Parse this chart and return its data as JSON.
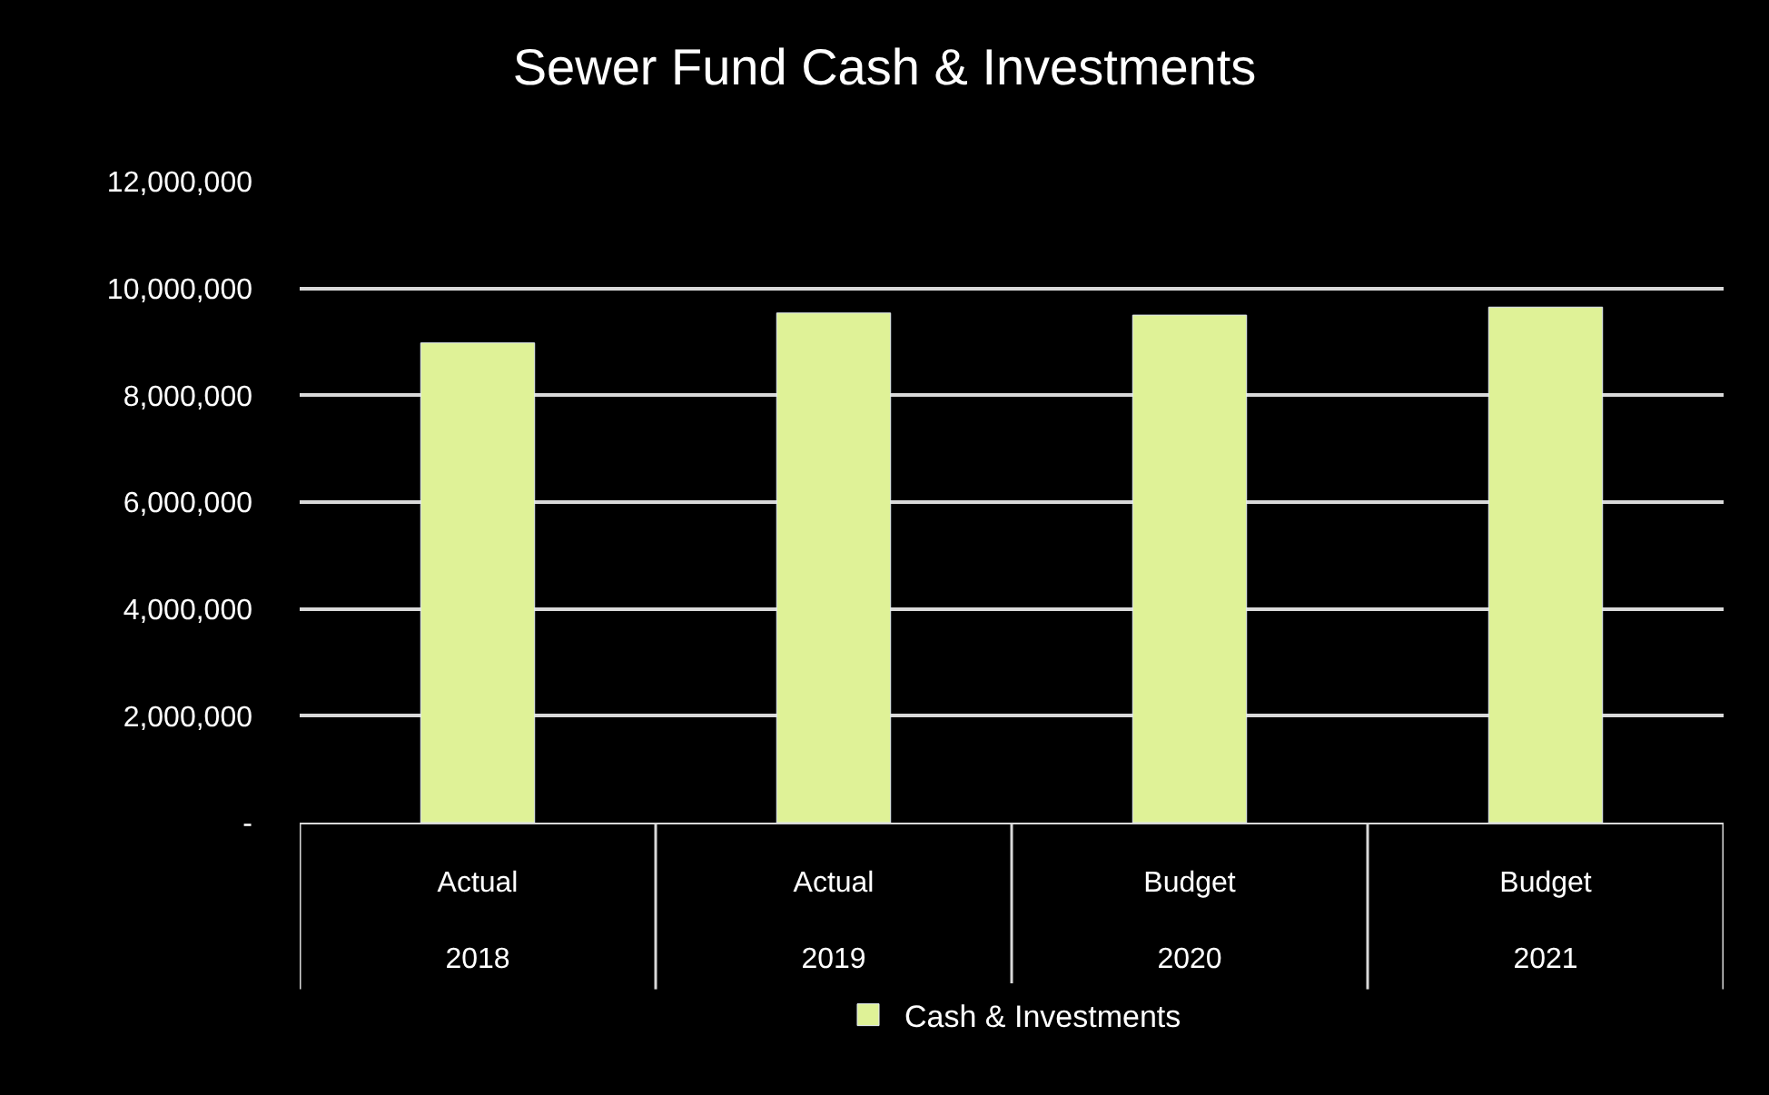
{
  "chart_data": {
    "type": "bar",
    "title": "Sewer Fund Cash & Investments",
    "categories": [
      "Actual\n2018",
      "Actual\n2019",
      "Budget\n2020",
      "Budget\n2021"
    ],
    "series": [
      {
        "name": "Cash & Investments",
        "color": "#dff297",
        "values": [
          8980000,
          9540000,
          9500000,
          9650000
        ]
      }
    ],
    "ylim": [
      0,
      12000000
    ],
    "yticks": [
      {
        "value": 0,
        "label": "-"
      },
      {
        "value": 2000000,
        "label": "2,000,000"
      },
      {
        "value": 4000000,
        "label": "4,000,000"
      },
      {
        "value": 6000000,
        "label": "6,000,000"
      },
      {
        "value": 8000000,
        "label": "8,000,000"
      },
      {
        "value": 10000000,
        "label": "10,000,000"
      },
      {
        "value": 12000000,
        "label": "12,000,000"
      }
    ],
    "grid": "y",
    "legend": "bottom"
  }
}
